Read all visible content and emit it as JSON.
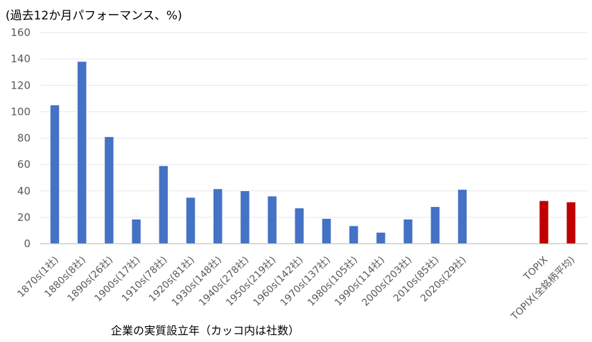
{
  "chart_data": {
    "type": "bar",
    "unit_label": "(過去12か月パフォーマンス、%)",
    "xlabel": "企業の実質設立年（カッコ内は社数）",
    "ylim": [
      0,
      160
    ],
    "yticks": [
      "0",
      "20",
      "40",
      "60",
      "80",
      "100",
      "120",
      "140",
      "160"
    ],
    "grid": true,
    "categories": [
      "1870s(1社)",
      "1880s(8社)",
      "1890s(26社)",
      "1900s(17社)",
      "1910s(78社)",
      "1920s(81社)",
      "1930s(148社)",
      "1940s(278社)",
      "1950s(219社)",
      "1960s(142社)",
      "1970s(137社)",
      "1980s(105社)",
      "1990s(114社)",
      "2000s(203社)",
      "2010s(85社)",
      "2020s(29社)",
      "TOPIX",
      "TOPIX(全銘柄平均)"
    ],
    "values": [
      105,
      138,
      81,
      18.5,
      59,
      35,
      41.5,
      40,
      36,
      27,
      19,
      13.5,
      8.5,
      18.5,
      28,
      41,
      32.5,
      31.5
    ],
    "colors": {
      "decade": "#4472C4",
      "benchmark": "#C00000"
    }
  }
}
